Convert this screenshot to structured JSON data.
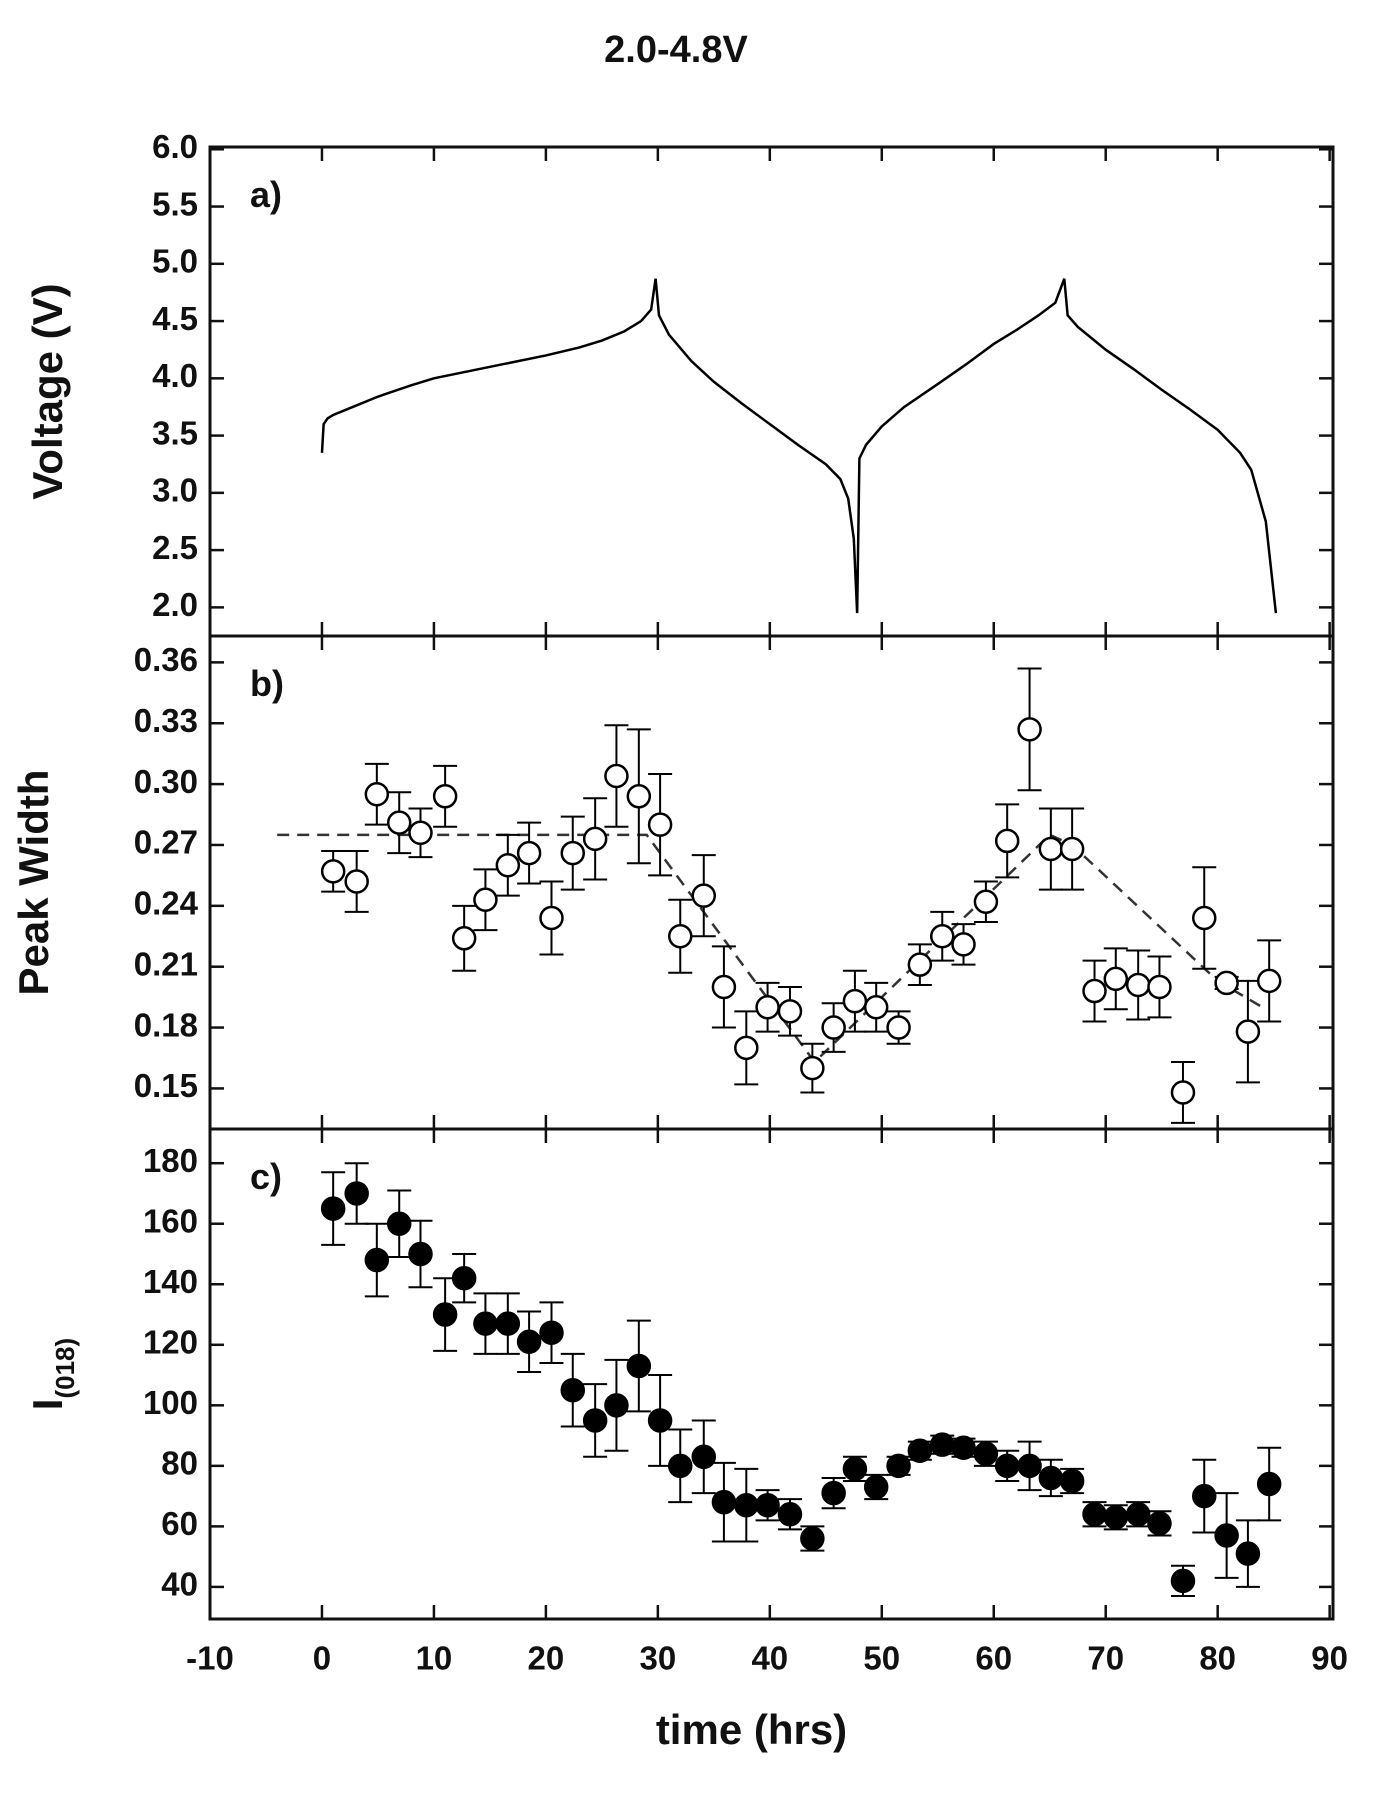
{
  "chart_data": [
    {
      "type": "line",
      "title": "2.0-4.8V",
      "annotation": "a)",
      "ylabel": "Voltage (V)",
      "color": "#000000",
      "x": [
        0,
        0.15,
        0.5,
        1,
        3,
        5,
        8,
        10,
        13,
        16,
        20,
        23,
        25,
        27,
        28.5,
        29.4,
        29.8,
        30.1,
        31,
        33,
        35,
        37.5,
        40,
        42.5,
        45,
        46.3,
        47,
        47.5,
        47.8,
        48,
        48.6,
        50,
        52,
        55,
        57.5,
        60,
        62,
        64,
        65.5,
        66.3,
        66.6,
        67.5,
        70,
        72.5,
        75,
        77.5,
        80,
        82,
        83,
        84.3,
        85.2
      ],
      "values": [
        3.35,
        3.6,
        3.65,
        3.68,
        3.76,
        3.84,
        3.94,
        4.0,
        4.06,
        4.12,
        4.2,
        4.27,
        4.33,
        4.41,
        4.5,
        4.6,
        4.87,
        4.55,
        4.38,
        4.15,
        3.97,
        3.78,
        3.6,
        3.42,
        3.25,
        3.12,
        2.95,
        2.6,
        1.95,
        3.3,
        3.42,
        3.58,
        3.75,
        3.95,
        4.12,
        4.3,
        4.42,
        4.55,
        4.66,
        4.87,
        4.55,
        4.45,
        4.25,
        4.08,
        3.9,
        3.73,
        3.55,
        3.35,
        3.2,
        2.75,
        1.95
      ],
      "xlim": [
        -10,
        90.3
      ],
      "ylim": [
        1.75,
        6.02
      ],
      "yticks": [
        {
          "value": 2,
          "label": "2.0"
        },
        2.5,
        {
          "value": 3,
          "label": "3.0"
        },
        3.5,
        {
          "value": 4,
          "label": "4.0"
        },
        4.5,
        {
          "value": 5,
          "label": "5.0"
        },
        5.5,
        {
          "value": 6,
          "label": "6.0"
        }
      ]
    },
    {
      "type": "scatter",
      "annotation": "b)",
      "ylabel": "Peak Width",
      "color": "#000000",
      "filled": false,
      "x": [
        1,
        3.1,
        4.9,
        6.9,
        8.8,
        11,
        12.7,
        14.6,
        16.6,
        18.5,
        20.5,
        22.4,
        24.4,
        26.3,
        28.3,
        30.2,
        32,
        34.1,
        35.9,
        37.9,
        39.8,
        41.8,
        43.8,
        45.7,
        47.6,
        49.5,
        51.5,
        53.4,
        55.4,
        57.3,
        59.3,
        61.2,
        63.2,
        65.1,
        67,
        69,
        70.9,
        72.9,
        74.8,
        76.9,
        78.8,
        80.8,
        82.7,
        84.6
      ],
      "values": [
        0.257,
        0.252,
        0.295,
        0.281,
        0.276,
        0.294,
        0.224,
        0.243,
        0.26,
        0.266,
        0.234,
        0.266,
        0.273,
        0.304,
        0.294,
        0.28,
        0.225,
        0.245,
        0.2,
        0.17,
        0.19,
        0.188,
        0.16,
        0.18,
        0.193,
        0.19,
        0.18,
        0.211,
        0.225,
        0.221,
        0.242,
        0.272,
        0.327,
        0.268,
        0.268,
        0.198,
        0.204,
        0.201,
        0.2,
        0.148,
        0.234,
        0.202,
        0.178,
        0.203
      ],
      "errors": [
        0.01,
        0.015,
        0.015,
        0.015,
        0.012,
        0.015,
        0.016,
        0.015,
        0.015,
        0.015,
        0.018,
        0.018,
        0.02,
        0.025,
        0.033,
        0.025,
        0.018,
        0.02,
        0.02,
        0.018,
        0.012,
        0.012,
        0.012,
        0.012,
        0.015,
        0.012,
        0.008,
        0.01,
        0.012,
        0.01,
        0.01,
        0.018,
        0.03,
        0.02,
        0.02,
        0.015,
        0.015,
        0.017,
        0.015,
        0.015,
        0.025,
        0.003,
        0.025,
        0.02
      ],
      "trend": {
        "x": [
          -4,
          29,
          44,
          65,
          67,
          80,
          84
        ],
        "values": [
          0.275,
          0.275,
          0.163,
          0.275,
          0.27,
          0.203,
          0.19
        ]
      },
      "xlim": [
        -10,
        90.3
      ],
      "ylim": [
        0.13,
        0.373
      ],
      "yticks": [
        0.15,
        0.18,
        0.21,
        0.24,
        0.27,
        {
          "value": 0.3,
          "label": "0.30"
        },
        0.33,
        0.36
      ]
    },
    {
      "type": "scatter",
      "annotation": "c)",
      "ylabel": "I",
      "ylabel_sub": "(018)",
      "xlabel": "time (hrs)",
      "color": "#000000",
      "filled": true,
      "x": [
        1,
        3.1,
        4.9,
        6.9,
        8.8,
        11,
        12.7,
        14.6,
        16.6,
        18.5,
        20.5,
        22.4,
        24.4,
        26.3,
        28.3,
        30.2,
        32,
        34.1,
        35.9,
        37.9,
        39.8,
        41.8,
        43.8,
        45.7,
        47.6,
        49.5,
        51.5,
        53.4,
        55.4,
        57.3,
        59.3,
        61.2,
        63.2,
        65.1,
        67,
        69,
        70.9,
        72.9,
        74.8,
        76.9,
        78.8,
        80.8,
        82.7,
        84.6
      ],
      "values": [
        165,
        170,
        148,
        160,
        150,
        130,
        142,
        127,
        127,
        121,
        124,
        105,
        95,
        100,
        113,
        95,
        80,
        83,
        68,
        67,
        67,
        64,
        56,
        71,
        79,
        73,
        80,
        85,
        87,
        86,
        84,
        80,
        80,
        76,
        75,
        64,
        63,
        64,
        61,
        42,
        70,
        57,
        51,
        74
      ],
      "errors": [
        12,
        10,
        12,
        11,
        11,
        12,
        8,
        10,
        10,
        10,
        10,
        12,
        12,
        15,
        15,
        15,
        12,
        12,
        13,
        12,
        5,
        5,
        4,
        5,
        4,
        4,
        3,
        3,
        3,
        3,
        4,
        5,
        8,
        6,
        4,
        4,
        4,
        4,
        4,
        5,
        12,
        14,
        11,
        12
      ],
      "xlim": [
        -10,
        90.3
      ],
      "ylim": [
        29.4,
        191.3
      ],
      "xticks": [
        -10,
        0,
        10,
        20,
        30,
        40,
        50,
        60,
        70,
        80,
        90
      ],
      "yticks": [
        40,
        60,
        80,
        100,
        120,
        140,
        160,
        180
      ]
    }
  ]
}
